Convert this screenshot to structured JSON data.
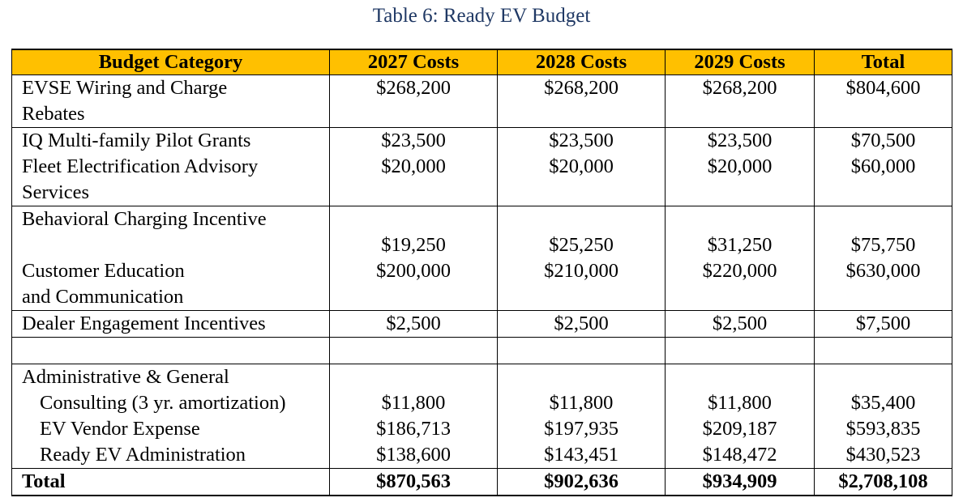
{
  "caption": "Table 6:  Ready EV Budget",
  "header": {
    "category": "Budget Category",
    "col2027": "2027 Costs",
    "col2028": "2028 Costs",
    "col2029": "2029 Costs",
    "total": "Total"
  },
  "rows": {
    "evse": {
      "label1": "EVSE Wiring and Charge",
      "label2": "Rebates",
      "c2027": "$268,200",
      "c2028": "$268,200",
      "c2029": "$268,200",
      "total": "$804,600"
    },
    "iq": {
      "label1": "IQ Multi-family Pilot Grants",
      "c2027": "$23,500",
      "c2028": "$23,500",
      "c2029": "$23,500",
      "total": "$70,500"
    },
    "fleet": {
      "label1": "Fleet Electrification Advisory",
      "label2": "Services",
      "c2027": "$20,000",
      "c2028": "$20,000",
      "c2029": "$20,000",
      "total": "$60,000"
    },
    "behavioral": {
      "label1": "Behavioral Charging  Incentive",
      "c2027": "$19,250",
      "c2028": "$25,250",
      "c2029": "$31,250",
      "total": "$75,750"
    },
    "education": {
      "label1": "Customer Education",
      "label2": "and Communication",
      "c2027": "$200,000",
      "c2028": "$210,000",
      "c2029": "$220,000",
      "total": "$630,000"
    },
    "dealer": {
      "label1": "Dealer Engagement Incentives",
      "c2027": "$2,500",
      "c2028": "$2,500",
      "c2029": "$2,500",
      "total": "$7,500"
    },
    "admin_header": {
      "label1": "Administrative & General"
    },
    "consulting": {
      "label1": "Consulting (3 yr. amortization)",
      "c2027": "$11,800",
      "c2028": "$11,800",
      "c2029": "$11,800",
      "total": "$35,400"
    },
    "vendor": {
      "label1": "EV Vendor Expense",
      "c2027": "$186,713",
      "c2028": "$197,935",
      "c2029": "$209,187",
      "total": "$593,835"
    },
    "readyev": {
      "label1": "Ready EV Administration",
      "c2027": "$138,600",
      "c2028": "$143,451",
      "c2029": "$148,472",
      "total": "$430,523"
    },
    "total": {
      "label1": "Total",
      "c2027": "$870,563",
      "c2028": "$902,636",
      "c2029": "$934,909",
      "total": "$2,708,108"
    }
  }
}
